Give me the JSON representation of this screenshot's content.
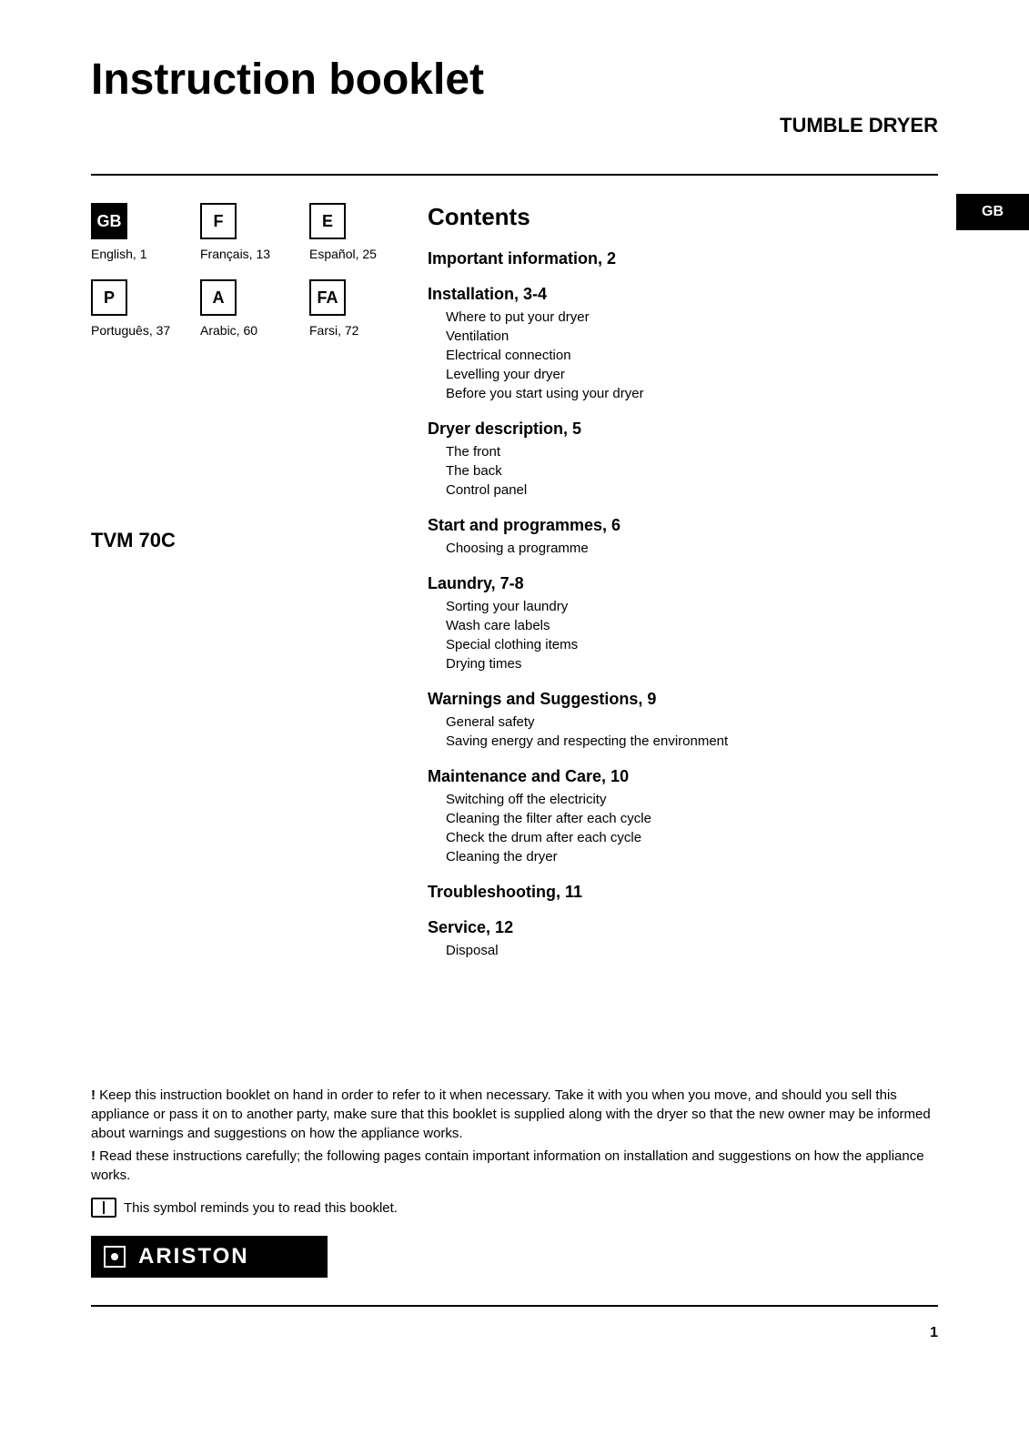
{
  "title": "Instruction booklet",
  "product_type": "TUMBLE DRYER",
  "languages": [
    {
      "code": "GB",
      "label": "English, 1",
      "style": "filled"
    },
    {
      "code": "F",
      "label": "Français, 13",
      "style": "outlined"
    },
    {
      "code": "E",
      "label": "Español, 25",
      "style": "outlined"
    },
    {
      "code": "P",
      "label": "Português, 37",
      "style": "outlined"
    },
    {
      "code": "A",
      "label": "Arabic, 60",
      "style": "outlined"
    },
    {
      "code": "FA",
      "label": "Farsi, 72",
      "style": "outlined"
    }
  ],
  "model": "TVM 70C",
  "side_tab": "GB",
  "contents_heading": "Contents",
  "sections": [
    {
      "title": "Important information, 2",
      "items": []
    },
    {
      "title": "Installation, 3-4",
      "items": [
        "Where to put your dryer",
        "Ventilation",
        "Electrical connection",
        "Levelling your dryer",
        "Before you start using your dryer"
      ]
    },
    {
      "title": "Dryer description, 5",
      "items": [
        "The front",
        "The back",
        "Control panel"
      ]
    },
    {
      "title": "Start and programmes, 6",
      "items": [
        "Choosing a programme"
      ]
    },
    {
      "title": "Laundry, 7-8",
      "items": [
        "Sorting your laundry",
        "Wash care labels",
        "Special clothing items",
        "Drying times"
      ]
    },
    {
      "title": "Warnings and Suggestions, 9",
      "items": [
        "General safety",
        "Saving energy and respecting the environment"
      ]
    },
    {
      "title": "Maintenance and Care, 10",
      "items": [
        "Switching off the electricity",
        "Cleaning the filter after each cycle",
        "Check the drum after each cycle",
        "Cleaning the dryer"
      ]
    },
    {
      "title": "Troubleshooting, 11",
      "items": []
    },
    {
      "title": "Service, 12",
      "items": [
        "Disposal"
      ]
    }
  ],
  "notices": {
    "line1_prefix": "!",
    "line1": " Keep this instruction booklet on hand in order to refer to it when necessary. Take it with you when you move, and should you sell this appliance or pass it on to another party, make sure that this booklet is supplied along with the dryer so that the new owner may be informed about warnings and suggestions on how the appliance works.",
    "line2_prefix": "!",
    "line2": " Read these instructions carefully; the following pages contain important information on installation and suggestions on how the appliance works.",
    "book_symbol_text": "This symbol reminds you to read this booklet."
  },
  "brand": "ARISTON",
  "page_number": "1",
  "colors": {
    "text": "#000000",
    "background": "#ffffff"
  },
  "typography": {
    "title_fontsize": 48,
    "body_fontsize": 15,
    "section_title_fontsize": 18
  }
}
